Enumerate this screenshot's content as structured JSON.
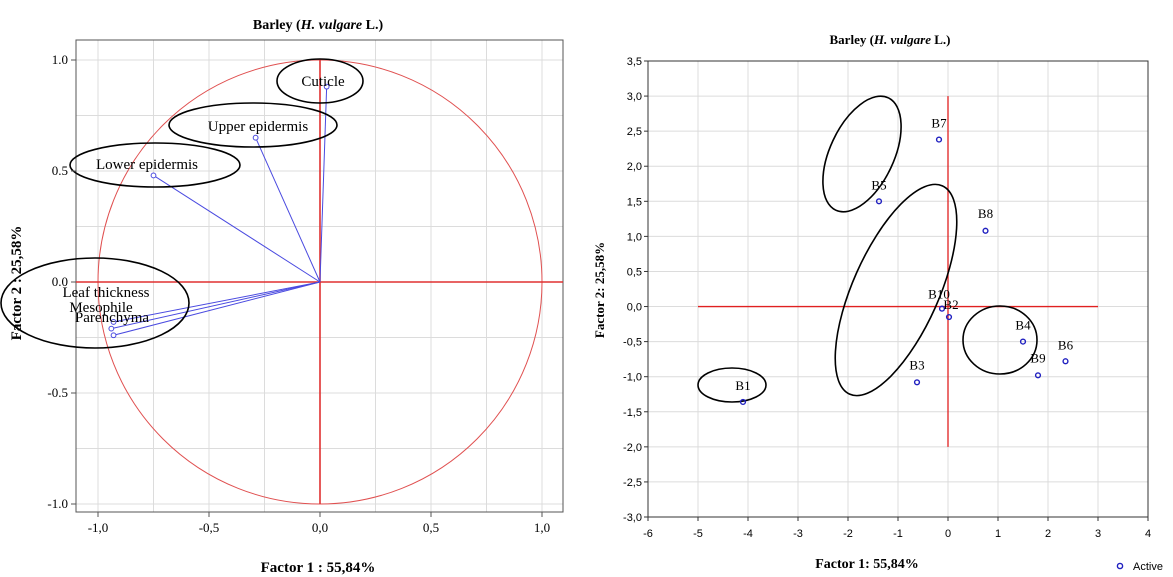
{
  "chart_data": [
    {
      "type": "scatter",
      "subtype": "correlation-circle",
      "title_main": "Barley (",
      "title_italic": "H. vulgare",
      "title_end": " L.)",
      "xlabel": "Factor 1 : 55,84%",
      "ylabel": "Factor 2 : 25,58%",
      "xlim": [
        -1.1,
        1.1
      ],
      "ylim": [
        -1.1,
        1.1
      ],
      "x_ticks": [
        -1.0,
        -0.5,
        0.0,
        0.5,
        1.0
      ],
      "x_tick_labels": [
        "-1,0",
        "-0,5",
        "0,0",
        "0,5",
        "1,0"
      ],
      "y_ticks": [
        -1.0,
        -0.5,
        0.0,
        0.5,
        1.0
      ],
      "y_tick_labels": [
        "-1.0",
        "-0.5",
        "0.0",
        "0.5",
        "1.0"
      ],
      "grid": true,
      "circle_radius": 1.0,
      "variables": [
        {
          "name": "Cuticle",
          "x": 0.03,
          "y": 0.88
        },
        {
          "name": "Upper epidermis",
          "x": -0.29,
          "y": 0.65
        },
        {
          "name": "Lower epidermis",
          "x": -0.75,
          "y": 0.48
        },
        {
          "name": "Leaf thickness",
          "x": -0.93,
          "y": -0.18
        },
        {
          "name": "Mesophile",
          "x": -0.94,
          "y": -0.21
        },
        {
          "name": "Parenchyma",
          "x": -0.93,
          "y": -0.24
        }
      ],
      "colors": {
        "vector": "#4a4ae0",
        "axis": "#e03030",
        "circle": "#e05050",
        "grid": "#dcdcdc",
        "ellipse": "#000000"
      }
    },
    {
      "type": "scatter",
      "title_main": "Barley (",
      "title_italic": "H. vulgare",
      "title_end": " L.)",
      "xlabel": "Factor 1: 55,84%",
      "ylabel": "Factor 2: 25,58%",
      "xlim": [
        -6,
        4
      ],
      "ylim": [
        -3.0,
        3.5
      ],
      "x_ticks": [
        -6,
        -5,
        -4,
        -3,
        -2,
        -1,
        0,
        1,
        2,
        3,
        4
      ],
      "x_tick_labels": [
        "-6",
        "-5",
        "-4",
        "-3",
        "-2",
        "-1",
        "0",
        "1",
        "2",
        "3",
        "4"
      ],
      "y_ticks": [
        -3.0,
        -2.5,
        -2.0,
        -1.5,
        -1.0,
        -0.5,
        0.0,
        0.5,
        1.0,
        1.5,
        2.0,
        2.5,
        3.0,
        3.5
      ],
      "y_tick_labels": [
        "-3,0",
        "-2,5",
        "-2,0",
        "-1,5",
        "-1,0",
        "-0,5",
        "0,0",
        "0,5",
        "1,0",
        "1,5",
        "2,0",
        "2,5",
        "3,0",
        "3,5"
      ],
      "grid": true,
      "legend": {
        "label": "Active",
        "placement": "bottom-right"
      },
      "points": [
        {
          "name": "B1",
          "x": -4.1,
          "y": -1.36
        },
        {
          "name": "B2",
          "x": 0.02,
          "y": -0.15
        },
        {
          "name": "B3",
          "x": -0.62,
          "y": -1.08
        },
        {
          "name": "B4",
          "x": 1.5,
          "y": -0.5
        },
        {
          "name": "B5",
          "x": -1.38,
          "y": 1.5
        },
        {
          "name": "B6",
          "x": 2.35,
          "y": -0.78
        },
        {
          "name": "B7",
          "x": -0.18,
          "y": 2.38
        },
        {
          "name": "B8",
          "x": 0.75,
          "y": 1.08
        },
        {
          "name": "B9",
          "x": 1.8,
          "y": -0.98
        },
        {
          "name": "B10",
          "x": -0.12,
          "y": -0.03
        }
      ],
      "colors": {
        "point": "#2020c0",
        "axis": "#e02020",
        "grid": "#dcdcdc",
        "ellipse": "#000000"
      }
    }
  ]
}
